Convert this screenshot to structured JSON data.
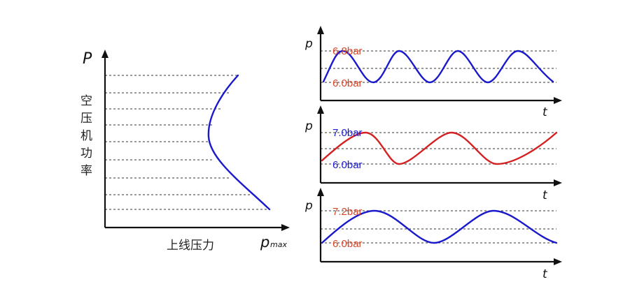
{
  "left_chart": {
    "y_label": "P",
    "y_desc_chars": [
      "空",
      "压",
      "机",
      "功",
      "率"
    ],
    "x_label": "上线压力",
    "x_end_main": "p",
    "x_end_sub": "max",
    "curve_color": "#1a1acc"
  },
  "panels": [
    {
      "y_label": "p",
      "x_label": "t",
      "upper_label": "6.8bar",
      "lower_label": "6.0bar",
      "upper_color": "#d8462a",
      "lower_color": "#d8462a",
      "curve_color": "#1a1acc"
    },
    {
      "y_label": "p",
      "x_label": "t",
      "upper_label": "7.0bar",
      "lower_label": "6.0bar",
      "upper_color": "#1a1acc",
      "lower_color": "#1a1acc",
      "curve_color": "#d42020"
    },
    {
      "y_label": "p",
      "x_label": "t",
      "upper_label": "7.2bar",
      "lower_label": "6.0bar",
      "upper_color": "#d8462a",
      "lower_color": "#d8462a",
      "curve_color": "#1a1acc"
    }
  ]
}
